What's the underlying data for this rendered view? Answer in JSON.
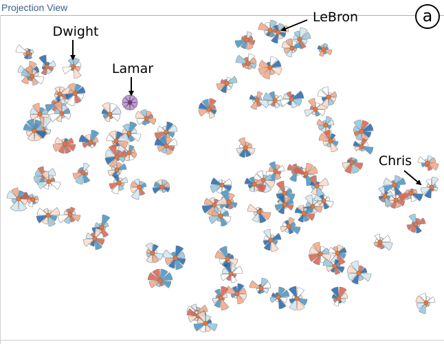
{
  "panel": {
    "title": "Projection View",
    "badge": "a"
  },
  "colors": {
    "title": "#3a5f8f",
    "center_dot": "#e07a43",
    "highlight_purple": "#8a56a8",
    "diverging_scale": [
      "#2166ac",
      "#4393c3",
      "#92c5de",
      "#d1e5f0",
      "#ffffff",
      "#fddbc7",
      "#f4a582",
      "#d6604d"
    ]
  },
  "annotations": [
    {
      "name": "Dwight",
      "label": "Dwight"
    },
    {
      "name": "Lamar",
      "label": "Lamar"
    },
    {
      "name": "LeBron",
      "label": "LeBron"
    },
    {
      "name": "Chris",
      "label": "Chris"
    }
  ]
}
